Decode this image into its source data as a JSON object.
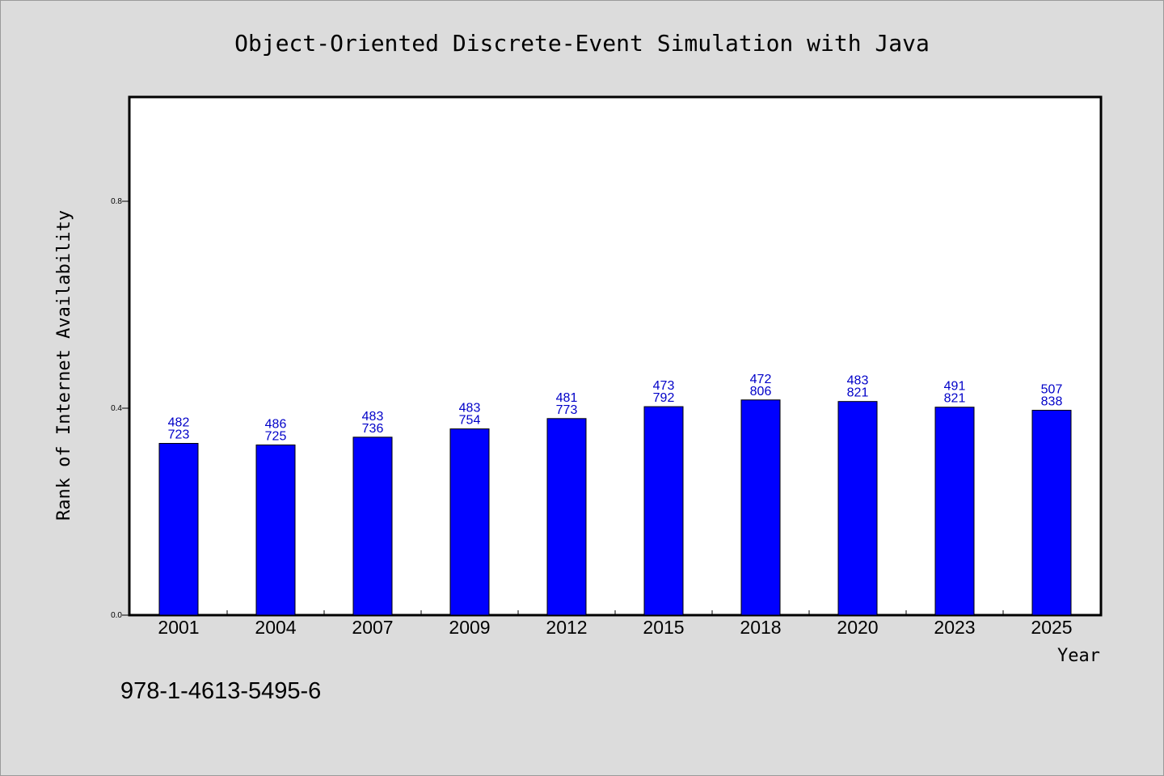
{
  "chart_data": {
    "type": "bar",
    "title": "Object-Oriented Discrete-Event Simulation with Java",
    "xlabel": "Year",
    "ylabel": "Rank of Internet Availability",
    "categories": [
      "2001",
      "2004",
      "2007",
      "2009",
      "2012",
      "2015",
      "2018",
      "2020",
      "2023",
      "2025"
    ],
    "values": [
      0.332,
      0.329,
      0.344,
      0.36,
      0.38,
      0.403,
      0.416,
      0.413,
      0.402,
      0.396
    ],
    "label_top": [
      "482",
      "486",
      "483",
      "483",
      "481",
      "473",
      "472",
      "483",
      "491",
      "507"
    ],
    "label_bottom": [
      "723",
      "725",
      "736",
      "754",
      "773",
      "792",
      "806",
      "821",
      "821",
      "838"
    ],
    "ylim": [
      0,
      1.0
    ],
    "yticks": [
      0.0,
      0.4,
      0.8
    ],
    "ytick_labels": [
      "0.0",
      "0.4",
      "0.8"
    ],
    "bar_color": "#0000ff",
    "label_color": "#0000c8",
    "grid": false,
    "legend": "none"
  },
  "footer": {
    "isbn": "978-1-4613-5495-6"
  }
}
